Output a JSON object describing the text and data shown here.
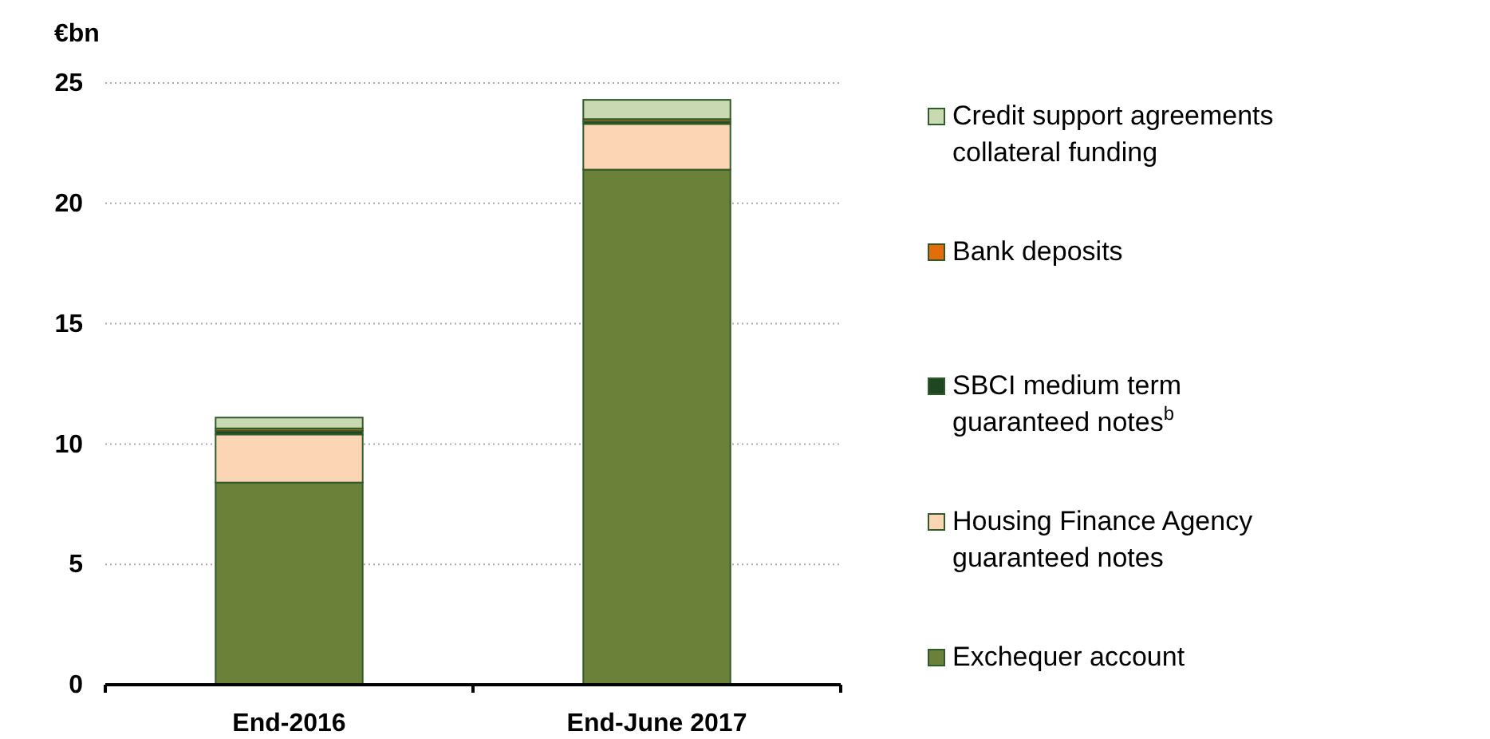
{
  "chart_data": {
    "type": "bar",
    "ylabel": "€bn",
    "categories": [
      "End-2016",
      "End-June 2017"
    ],
    "stacked": true,
    "ylim": [
      0,
      25
    ],
    "yticks": [
      0,
      5,
      10,
      15,
      20,
      25
    ],
    "grid": "y",
    "legend": "right",
    "series": [
      {
        "name": "Exchequer account",
        "color": "#6b813a",
        "values": [
          8.4,
          21.4
        ]
      },
      {
        "name": "Housing Finance Agency guaranteed notes",
        "color": "#fcd5b5",
        "values": [
          2.0,
          1.9
        ]
      },
      {
        "name": "SBCI medium term guaranteed notes$^{b}$",
        "color": "#1e4620",
        "values": [
          0.15,
          0.1
        ]
      },
      {
        "name": "Bank deposits",
        "color": "#e46c0a",
        "values": [
          0.1,
          0.1
        ]
      },
      {
        "name": "Credit support agreements collateral funding",
        "color": "#c9d9b1",
        "values": [
          0.45,
          0.8
        ]
      }
    ]
  }
}
